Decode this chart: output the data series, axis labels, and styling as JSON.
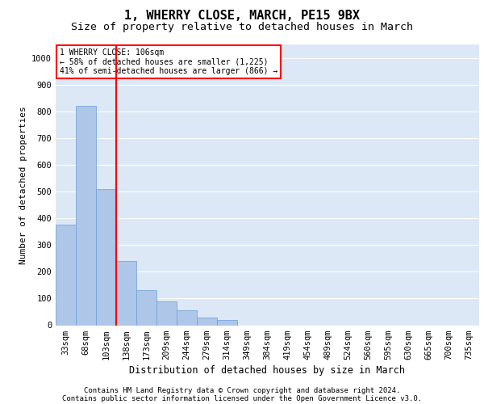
{
  "title1": "1, WHERRY CLOSE, MARCH, PE15 9BX",
  "title2": "Size of property relative to detached houses in March",
  "xlabel": "Distribution of detached houses by size in March",
  "ylabel": "Number of detached properties",
  "categories": [
    "33sqm",
    "68sqm",
    "103sqm",
    "138sqm",
    "173sqm",
    "209sqm",
    "244sqm",
    "279sqm",
    "314sqm",
    "349sqm",
    "384sqm",
    "419sqm",
    "454sqm",
    "489sqm",
    "524sqm",
    "560sqm",
    "595sqm",
    "630sqm",
    "665sqm",
    "700sqm",
    "735sqm"
  ],
  "values": [
    375,
    820,
    510,
    240,
    130,
    90,
    55,
    30,
    20,
    0,
    0,
    0,
    0,
    0,
    0,
    0,
    0,
    0,
    0,
    0,
    0
  ],
  "bar_color": "#aec6e8",
  "bar_edge_color": "#6a9fd8",
  "vline_x": 2.5,
  "vline_color": "red",
  "vline_linewidth": 1.5,
  "annotation_text": "1 WHERRY CLOSE: 106sqm\n← 58% of detached houses are smaller (1,225)\n41% of semi-detached houses are larger (866) →",
  "annotation_box_color": "red",
  "annotation_box_facecolor": "white",
  "ylim": [
    0,
    1050
  ],
  "yticks": [
    0,
    100,
    200,
    300,
    400,
    500,
    600,
    700,
    800,
    900,
    1000
  ],
  "background_color": "#dce8f5",
  "footer1": "Contains HM Land Registry data © Crown copyright and database right 2024.",
  "footer2": "Contains public sector information licensed under the Open Government Licence v3.0.",
  "title1_fontsize": 11,
  "title2_fontsize": 9.5,
  "xlabel_fontsize": 8.5,
  "ylabel_fontsize": 8,
  "tick_fontsize": 7.5,
  "footer_fontsize": 6.5
}
